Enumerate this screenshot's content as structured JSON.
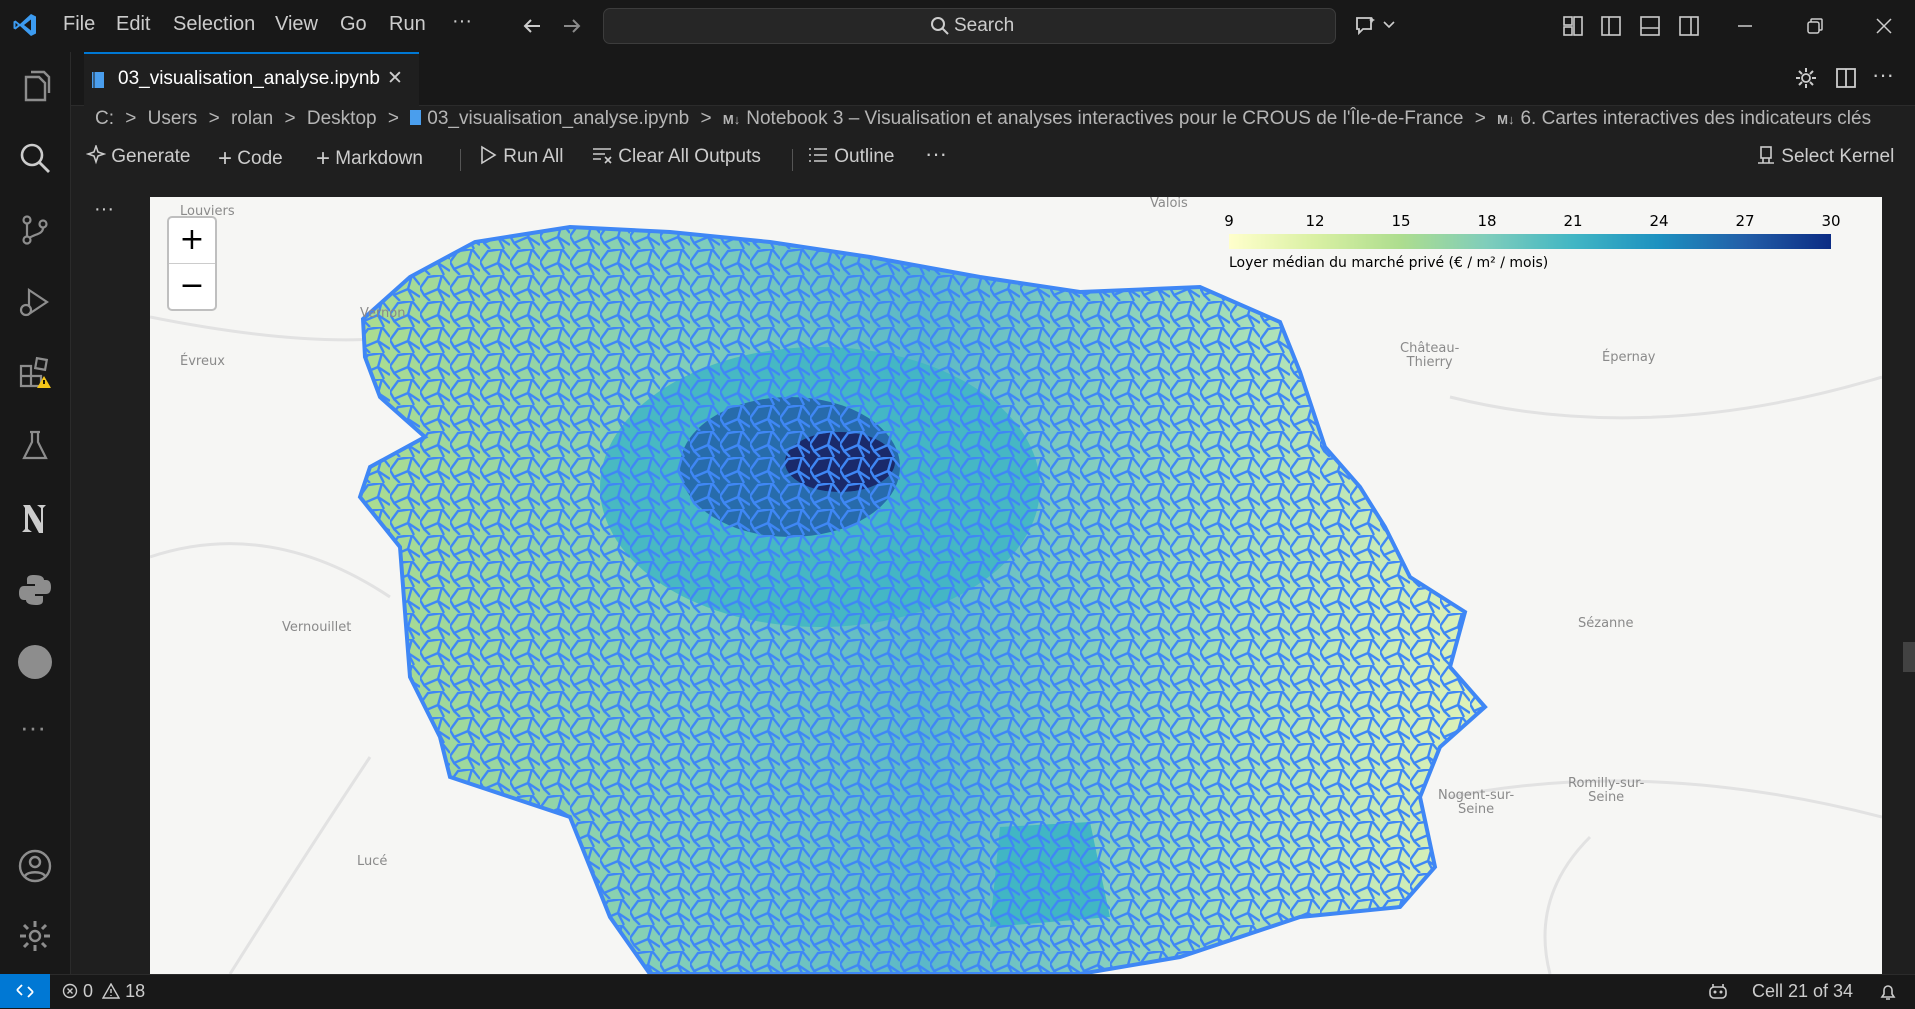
{
  "titlebar": {
    "menu": [
      "File",
      "Edit",
      "Selection",
      "View",
      "Go",
      "Run"
    ],
    "more": "···",
    "search_label": "Search"
  },
  "tab": {
    "title": "03_visualisation_analyse.ipynb",
    "close": "✕"
  },
  "breadcrumb": [
    "C:",
    "Users",
    "rolan",
    "Desktop",
    "03_visualisation_analyse.ipynb",
    "Notebook 3 – Visualisation et analyses interactives pour le CROUS de l'Île-de-France",
    "6. Cartes interactives des indicateurs clés"
  ],
  "toolbar": {
    "generate": "Generate",
    "code": "Code",
    "markdown": "Markdown",
    "run_all": "Run All",
    "clear_outputs": "Clear All Outputs",
    "outline": "Outline",
    "more": "···",
    "select_kernel": "Select Kernel"
  },
  "cell_menu": "···",
  "map": {
    "zoom_in": "+",
    "zoom_out": "−",
    "legend_ticks": [
      "9",
      "12",
      "15",
      "18",
      "21",
      "24",
      "27",
      "30"
    ],
    "legend_caption": "Loyer médian du marché privé (€ / m² / mois)",
    "legend_colors": [
      "#ffffcc",
      "#d9f0a3",
      "#addd8e",
      "#7fcdbb",
      "#41b6c4",
      "#1d91c0",
      "#225ea8",
      "#0c2c84"
    ],
    "border_color": "#3f87f5",
    "places": {
      "louviers": "Louviers",
      "valois": "Valois",
      "vernon": "Vernon",
      "evreux": "Évreux",
      "chateau_thierry": "Château-\nThierry",
      "epernay": "Épernay",
      "vernouillet": "Vernouillet",
      "sezanne": "Sézanne",
      "romilly": "Romilly-sur-\nSeine",
      "nogent": "Nogent-sur-\nSeine",
      "luce": "Lucé"
    }
  },
  "status": {
    "errors": "0",
    "warnings": "18",
    "cell_position": "Cell 21 of 34"
  }
}
